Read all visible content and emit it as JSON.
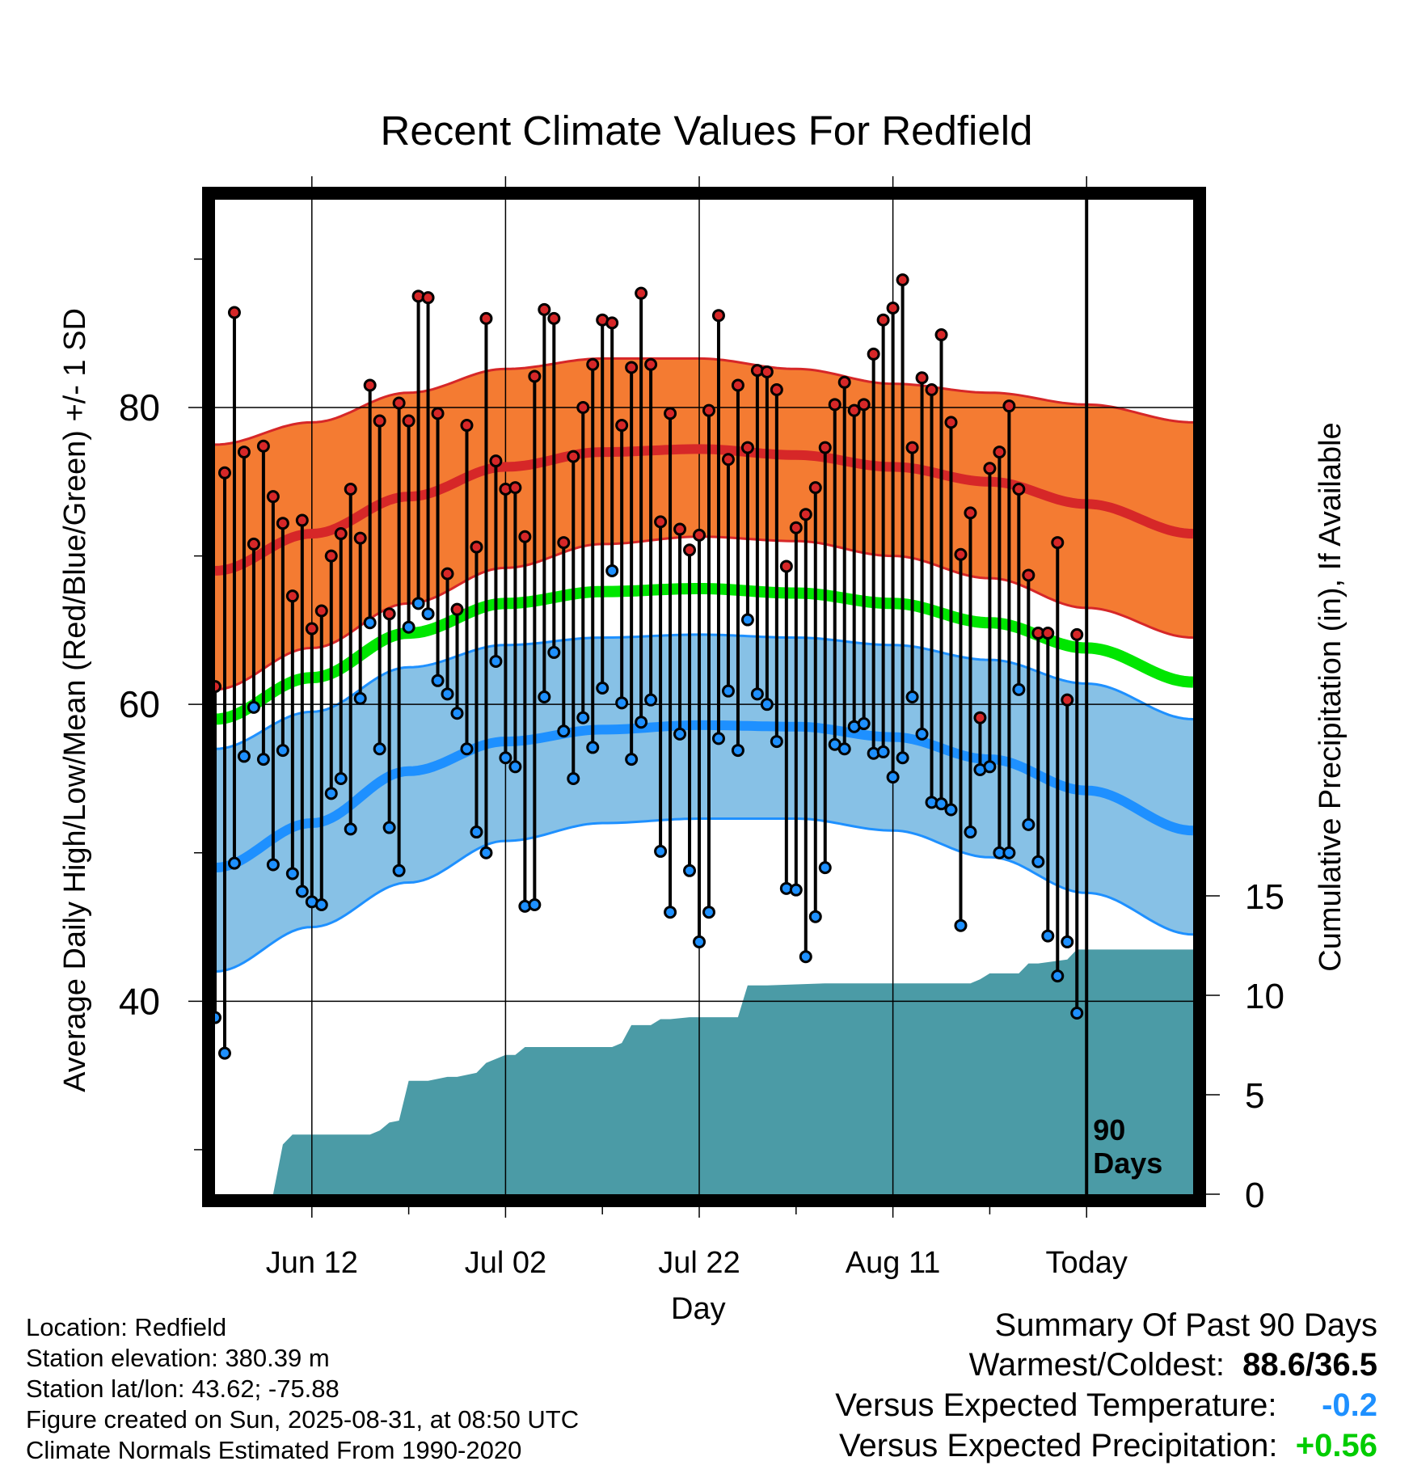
{
  "chart_data": {
    "type": "line",
    "title": "Recent Climate Values For Redfield",
    "xlabel": "Day",
    "ylabel_left": "Average Daily High/Low/Mean (Red/Blue/Green) +/- 1 SD",
    "ylabel_right": "Cumulative Precipitation (in), If Available",
    "x_tick_labels": [
      "Jun 12",
      "Jul 02",
      "Jul 22",
      "Aug 11",
      "Today"
    ],
    "x_tick_days": [
      11,
      31,
      51,
      71,
      91
    ],
    "x_range_days": [
      1,
      102
    ],
    "y_left_ticks": [
      40,
      60,
      80
    ],
    "y_left_range": [
      27,
      94
    ],
    "y_right_ticks": [
      0,
      5,
      10,
      15
    ],
    "y_right_range": [
      0,
      50
    ],
    "today_day": 91,
    "period_label": "90 Days",
    "normal_high_mean": {
      "x": [
        1,
        11,
        21,
        31,
        41,
        51,
        61,
        71,
        81,
        91,
        102
      ],
      "y": [
        69.0,
        71.5,
        74.0,
        76.0,
        77.0,
        77.2,
        76.8,
        76.0,
        75.0,
        73.5,
        71.5
      ]
    },
    "normal_high_upper": {
      "x": [
        1,
        11,
        21,
        31,
        41,
        51,
        61,
        71,
        81,
        91,
        102
      ],
      "y": [
        77.5,
        79.0,
        81.0,
        82.6,
        83.3,
        83.3,
        82.6,
        81.6,
        81.0,
        80.2,
        79.0
      ]
    },
    "normal_high_lower": {
      "x": [
        1,
        11,
        21,
        31,
        41,
        51,
        61,
        71,
        81,
        91,
        102
      ],
      "y": [
        61.0,
        63.8,
        66.8,
        69.2,
        70.8,
        71.3,
        71.0,
        70.0,
        68.5,
        66.5,
        64.5
      ]
    },
    "normal_mean": {
      "x": [
        1,
        11,
        21,
        31,
        41,
        51,
        61,
        71,
        81,
        91,
        102
      ],
      "y": [
        59.0,
        61.8,
        64.8,
        66.8,
        67.6,
        67.8,
        67.5,
        66.8,
        65.5,
        63.8,
        61.5
      ]
    },
    "normal_low_mean": {
      "x": [
        1,
        11,
        21,
        31,
        41,
        51,
        61,
        71,
        81,
        91,
        102
      ],
      "y": [
        49.0,
        52.0,
        55.5,
        57.5,
        58.3,
        58.6,
        58.5,
        57.8,
        56.3,
        54.2,
        51.5
      ]
    },
    "normal_low_upper": {
      "x": [
        1,
        11,
        21,
        31,
        41,
        51,
        61,
        71,
        81,
        91,
        102
      ],
      "y": [
        57.0,
        59.5,
        62.5,
        64.0,
        64.5,
        64.7,
        64.5,
        64.0,
        63.0,
        61.4,
        59.0
      ]
    },
    "normal_low_lower": {
      "x": [
        1,
        11,
        21,
        31,
        41,
        51,
        61,
        71,
        81,
        91,
        102
      ],
      "y": [
        42.0,
        45.0,
        48.0,
        50.8,
        52.0,
        52.3,
        52.3,
        51.5,
        49.7,
        47.3,
        44.5
      ]
    },
    "daily_high": [
      61.2,
      75.6,
      86.4,
      77.0,
      70.8,
      77.4,
      74.0,
      72.2,
      67.3,
      72.4,
      65.1,
      66.3,
      70.0,
      71.5,
      74.5,
      71.2,
      81.5,
      79.1,
      66.1,
      80.3,
      79.1,
      87.5,
      87.4,
      79.6,
      68.8,
      66.4,
      78.8,
      70.6,
      86.0,
      76.4,
      74.5,
      74.6,
      71.3,
      82.1,
      86.6,
      86.0,
      70.9,
      76.7,
      80.0,
      82.9,
      85.9,
      85.7,
      78.8,
      82.7,
      87.7,
      82.9,
      72.3,
      79.6,
      71.8,
      70.4,
      71.4,
      79.8,
      86.2,
      76.5,
      81.5,
      77.3,
      82.5,
      82.4,
      81.2,
      69.3,
      71.9,
      72.8,
      74.6,
      77.3,
      80.2,
      81.7,
      79.8,
      80.2,
      83.6,
      85.9,
      86.7,
      88.6,
      77.3,
      82.0,
      81.2,
      84.9,
      79.0,
      70.1,
      72.9,
      59.1,
      75.9,
      77.0,
      80.1,
      74.5,
      68.7,
      64.8,
      64.8,
      70.9,
      60.3,
      64.7
    ],
    "daily_low": [
      38.9,
      36.5,
      49.3,
      56.5,
      59.8,
      56.3,
      49.2,
      56.9,
      48.6,
      47.4,
      46.7,
      46.5,
      54.0,
      55.0,
      51.6,
      60.4,
      65.5,
      57.0,
      51.7,
      48.8,
      65.2,
      66.8,
      66.1,
      61.6,
      60.7,
      59.4,
      57.0,
      51.4,
      50.0,
      62.9,
      56.4,
      55.8,
      46.4,
      46.5,
      60.5,
      63.5,
      58.2,
      55.0,
      59.1,
      57.1,
      61.1,
      69.0,
      60.1,
      56.3,
      58.8,
      60.3,
      50.1,
      46.0,
      58.0,
      48.8,
      44.0,
      46.0,
      57.7,
      60.9,
      56.9,
      65.7,
      60.7,
      60.0,
      57.5,
      47.6,
      47.5,
      43.0,
      45.7,
      49.0,
      57.3,
      57.0,
      58.5,
      58.7,
      56.7,
      56.8,
      55.1,
      56.4,
      60.5,
      58.0,
      53.4,
      53.3,
      52.9,
      45.1,
      51.4,
      55.6,
      55.8,
      50.0,
      50.0,
      61.0,
      51.9,
      49.4,
      44.4,
      41.7,
      44.0,
      39.2
    ],
    "cumulative_precip": {
      "x": [
        1,
        7,
        8,
        9,
        10,
        17,
        18,
        19,
        20,
        21,
        22,
        23,
        25,
        26,
        28,
        29,
        31,
        32,
        33,
        34,
        36,
        42,
        43,
        44,
        46,
        47,
        48,
        50,
        54,
        55,
        56,
        58,
        64,
        68,
        74,
        79,
        80,
        81,
        83,
        84,
        85,
        86,
        89,
        90,
        91,
        102
      ],
      "y": [
        0,
        0,
        2.5,
        3.0,
        3.0,
        3.0,
        3.2,
        3.6,
        3.7,
        5.7,
        5.7,
        5.7,
        5.9,
        5.9,
        6.1,
        6.6,
        7.0,
        7.0,
        7.4,
        7.4,
        7.4,
        7.4,
        7.6,
        8.5,
        8.5,
        8.8,
        8.8,
        8.9,
        8.9,
        8.9,
        10.5,
        10.5,
        10.6,
        10.6,
        10.6,
        10.6,
        10.8,
        11.1,
        11.1,
        11.1,
        11.6,
        11.6,
        11.8,
        12.3,
        12.3,
        12.3
      ]
    },
    "colors": {
      "high_band": "#f47b32",
      "high_line": "#d62728",
      "low_band": "#87c1e6",
      "low_line": "#1e90ff",
      "mean_line": "#00e600",
      "precip_fill": "#4b9ba6",
      "high_dot": "#d62728",
      "low_dot": "#1e90ff",
      "above_normal": "#00cc00",
      "below_normal": "#1e90ff"
    }
  },
  "footer": {
    "location": "Location: Redfield",
    "elevation": "Station elevation: 380.39 m",
    "latlon": "Station lat/lon: 43.62; -75.88",
    "created": "Figure created on Sun, 2025-08-31, at 08:50 UTC",
    "normals": "Climate Normals Estimated From 1990-2020"
  },
  "summary": {
    "heading": "Summary Of Past 90 Days",
    "warmest_label": "Warmest/Coldest:",
    "warmest_value": "88.6/36.5",
    "temp_label": "Versus Expected Temperature:",
    "temp_value": "-0.2",
    "precip_label": "Versus Expected Precipitation:",
    "precip_value": "+0.56"
  }
}
